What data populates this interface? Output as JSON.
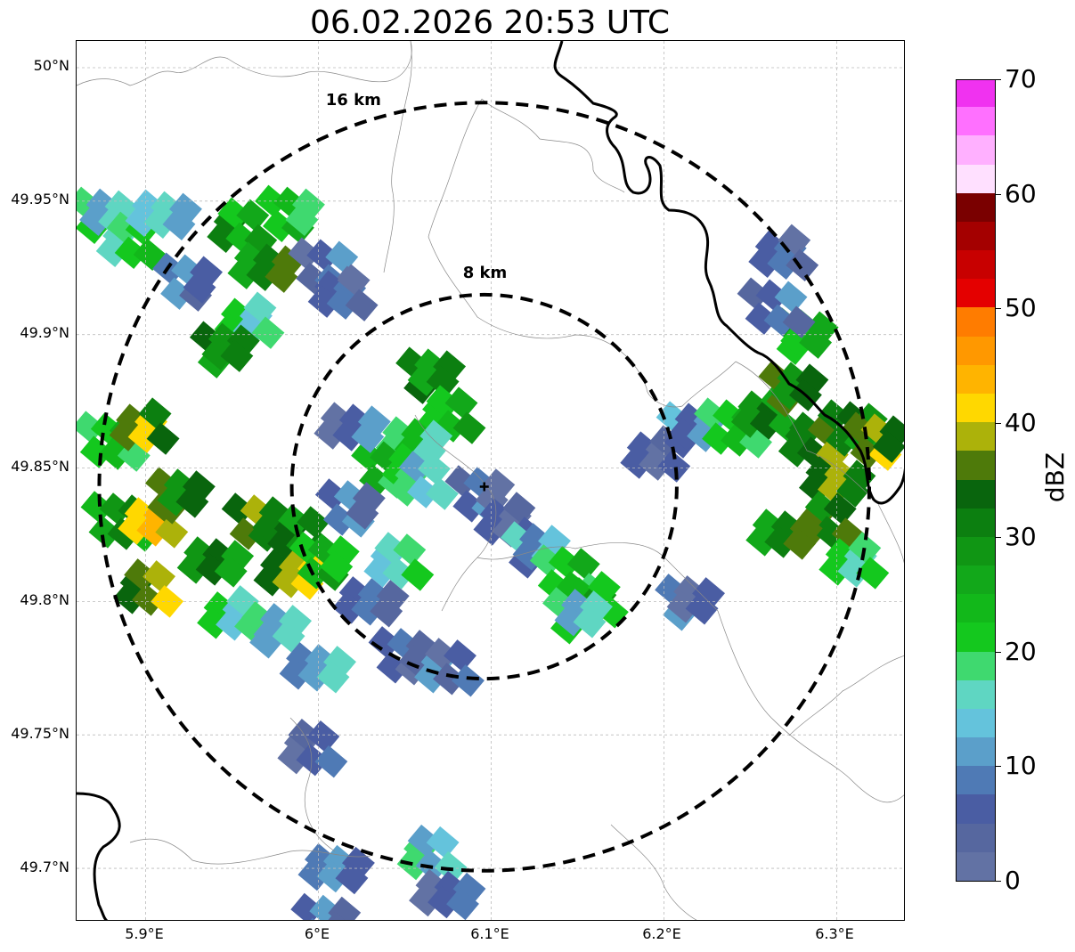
{
  "title": "06.02.2026 20:53 UTC",
  "axes": {
    "lat_ticks": [
      "50°N",
      "49.95°N",
      "49.9°N",
      "49.85°N",
      "49.8°N",
      "49.75°N",
      "49.7°N"
    ],
    "lon_ticks": [
      "5.9°E",
      "6°E",
      "6.1°E",
      "6.2°E",
      "6.3°E"
    ],
    "lat_values": [
      50.0,
      49.95,
      49.9,
      49.85,
      49.8,
      49.75,
      49.7
    ],
    "lon_values": [
      5.9,
      6.0,
      6.1,
      6.2,
      6.3
    ],
    "lon_range": [
      5.86,
      6.34
    ],
    "lat_range": [
      49.68,
      50.01
    ]
  },
  "radar": {
    "center": {
      "lon": 6.096,
      "lat": 49.843
    },
    "rings": [
      {
        "label": "8 km",
        "radius_km": 8
      },
      {
        "label": "16 km",
        "radius_km": 16
      }
    ]
  },
  "colorbar": {
    "label": "dBZ",
    "tick_labels": [
      "0",
      "10",
      "20",
      "30",
      "40",
      "50",
      "60",
      "70"
    ],
    "tick_values": [
      0,
      10,
      20,
      30,
      40,
      50,
      60,
      70
    ],
    "colors": [
      "#6272a4",
      "#56679f",
      "#4a5da3",
      "#4f7ab5",
      "#5b9fca",
      "#64c3dc",
      "#5fd6c2",
      "#3fd96f",
      "#14c81e",
      "#12b81a",
      "#12a81a",
      "#109614",
      "#0c7f10",
      "#09650d",
      "#4e7a0a",
      "#acb20a",
      "#ffd800",
      "#ffb400",
      "#ff9800",
      "#ff7c00",
      "#e40000",
      "#c80000",
      "#a40000",
      "#7a0000",
      "#ffe0ff",
      "#ffb0ff",
      "#ff70ff",
      "#f032f0"
    ]
  },
  "precip_cells": [
    {
      "lon": 5.885,
      "lat": 49.83,
      "dbz": 28
    },
    {
      "lon": 5.905,
      "lat": 49.83,
      "dbz": 40
    },
    {
      "lon": 5.92,
      "lat": 49.84,
      "dbz": 33
    },
    {
      "lon": 5.9,
      "lat": 49.805,
      "dbz": 37
    },
    {
      "lon": 5.94,
      "lat": 49.815,
      "dbz": 31
    },
    {
      "lon": 5.965,
      "lat": 49.83,
      "dbz": 34
    },
    {
      "lon": 5.99,
      "lat": 49.825,
      "dbz": 30
    },
    {
      "lon": 5.985,
      "lat": 49.81,
      "dbz": 38
    },
    {
      "lon": 6.005,
      "lat": 49.815,
      "dbz": 24
    },
    {
      "lon": 5.95,
      "lat": 49.795,
      "dbz": 18
    },
    {
      "lon": 5.975,
      "lat": 49.79,
      "dbz": 14
    },
    {
      "lon": 5.88,
      "lat": 49.86,
      "dbz": 22
    },
    {
      "lon": 5.9,
      "lat": 49.865,
      "dbz": 36
    },
    {
      "lon": 5.875,
      "lat": 49.945,
      "dbz": 16
    },
    {
      "lon": 5.89,
      "lat": 49.935,
      "dbz": 20
    },
    {
      "lon": 5.91,
      "lat": 49.945,
      "dbz": 15
    },
    {
      "lon": 5.925,
      "lat": 49.92,
      "dbz": 8
    },
    {
      "lon": 5.955,
      "lat": 49.94,
      "dbz": 26
    },
    {
      "lon": 5.97,
      "lat": 49.925,
      "dbz": 31
    },
    {
      "lon": 5.985,
      "lat": 49.945,
      "dbz": 22
    },
    {
      "lon": 5.96,
      "lat": 49.905,
      "dbz": 18
    },
    {
      "lon": 5.945,
      "lat": 49.895,
      "dbz": 30
    },
    {
      "lon": 6.005,
      "lat": 49.925,
      "dbz": 6
    },
    {
      "lon": 6.015,
      "lat": 49.915,
      "dbz": 5
    },
    {
      "lon": 6.065,
      "lat": 49.885,
      "dbz": 30
    },
    {
      "lon": 6.075,
      "lat": 49.87,
      "dbz": 24
    },
    {
      "lon": 6.055,
      "lat": 49.86,
      "dbz": 21
    },
    {
      "lon": 6.04,
      "lat": 49.85,
      "dbz": 23
    },
    {
      "lon": 6.06,
      "lat": 49.845,
      "dbz": 15
    },
    {
      "lon": 6.02,
      "lat": 49.865,
      "dbz": 6
    },
    {
      "lon": 6.095,
      "lat": 49.84,
      "dbz": 6
    },
    {
      "lon": 6.11,
      "lat": 49.83,
      "dbz": 5
    },
    {
      "lon": 6.125,
      "lat": 49.82,
      "dbz": 11
    },
    {
      "lon": 6.145,
      "lat": 49.81,
      "dbz": 22
    },
    {
      "lon": 6.16,
      "lat": 49.8,
      "dbz": 24
    },
    {
      "lon": 6.15,
      "lat": 49.795,
      "dbz": 16
    },
    {
      "lon": 6.045,
      "lat": 49.815,
      "dbz": 17
    },
    {
      "lon": 6.03,
      "lat": 49.8,
      "dbz": 7
    },
    {
      "lon": 6.05,
      "lat": 49.78,
      "dbz": 5
    },
    {
      "lon": 6.075,
      "lat": 49.775,
      "dbz": 6
    },
    {
      "lon": 6.0,
      "lat": 49.775,
      "dbz": 12
    },
    {
      "lon": 6.02,
      "lat": 49.835,
      "dbz": 8
    },
    {
      "lon": 6.195,
      "lat": 49.855,
      "dbz": 5
    },
    {
      "lon": 6.215,
      "lat": 49.865,
      "dbz": 9
    },
    {
      "lon": 6.24,
      "lat": 49.865,
      "dbz": 22
    },
    {
      "lon": 6.26,
      "lat": 49.87,
      "dbz": 29
    },
    {
      "lon": 6.275,
      "lat": 49.88,
      "dbz": 33
    },
    {
      "lon": 6.285,
      "lat": 49.86,
      "dbz": 34
    },
    {
      "lon": 6.3,
      "lat": 49.845,
      "dbz": 36
    },
    {
      "lon": 6.31,
      "lat": 49.865,
      "dbz": 30
    },
    {
      "lon": 6.295,
      "lat": 49.83,
      "dbz": 33
    },
    {
      "lon": 6.27,
      "lat": 49.825,
      "dbz": 31
    },
    {
      "lon": 6.325,
      "lat": 49.86,
      "dbz": 37
    },
    {
      "lon": 6.31,
      "lat": 49.815,
      "dbz": 20
    },
    {
      "lon": 6.28,
      "lat": 49.9,
      "dbz": 24
    },
    {
      "lon": 6.265,
      "lat": 49.91,
      "dbz": 7
    },
    {
      "lon": 6.27,
      "lat": 49.93,
      "dbz": 5
    },
    {
      "lon": 6.215,
      "lat": 49.8,
      "dbz": 6
    },
    {
      "lon": 5.995,
      "lat": 49.745,
      "dbz": 5
    },
    {
      "lon": 6.01,
      "lat": 49.7,
      "dbz": 10
    },
    {
      "lon": 6.005,
      "lat": 49.68,
      "dbz": 6
    },
    {
      "lon": 6.065,
      "lat": 49.705,
      "dbz": 14
    },
    {
      "lon": 6.075,
      "lat": 49.69,
      "dbz": 5
    }
  ]
}
